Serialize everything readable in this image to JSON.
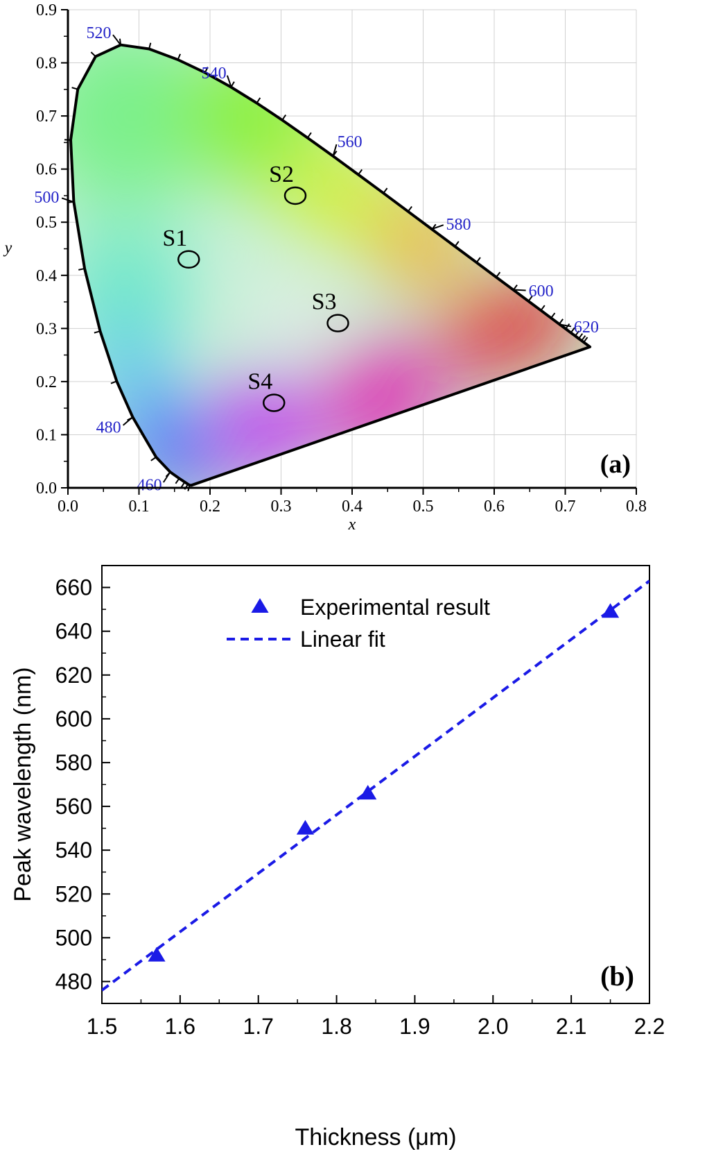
{
  "colors": {
    "axis": "#000000",
    "grid": "#d0d0d0",
    "wavelength_label": "#2323c8",
    "series": "#1a1ae6"
  },
  "chart_data": [
    {
      "type": "scatter",
      "panel_label": "(a)",
      "xlabel": "x",
      "ylabel": "y",
      "xlim": [
        0.0,
        0.8
      ],
      "ylim": [
        0.0,
        0.9
      ],
      "x_ticks": [
        "0.0",
        "0.1",
        "0.2",
        "0.3",
        "0.4",
        "0.5",
        "0.6",
        "0.7",
        "0.8"
      ],
      "y_ticks": [
        "0.0",
        "0.1",
        "0.2",
        "0.3",
        "0.4",
        "0.5",
        "0.6",
        "0.7",
        "0.8",
        "0.9"
      ],
      "grid": true,
      "background": "CIE 1931 chromaticity diagram",
      "wavelength_labels": [
        {
          "nm": "460",
          "x": 0.144,
          "y": 0.03
        },
        {
          "nm": "480",
          "x": 0.091,
          "y": 0.133
        },
        {
          "nm": "500",
          "x": 0.008,
          "y": 0.538
        },
        {
          "nm": "520",
          "x": 0.074,
          "y": 0.834
        },
        {
          "nm": "540",
          "x": 0.23,
          "y": 0.754
        },
        {
          "nm": "560",
          "x": 0.373,
          "y": 0.624
        },
        {
          "nm": "580",
          "x": 0.512,
          "y": 0.487
        },
        {
          "nm": "600",
          "x": 0.627,
          "y": 0.373
        },
        {
          "nm": "620",
          "x": 0.691,
          "y": 0.308
        }
      ],
      "points": [
        {
          "label": "S1",
          "x": 0.17,
          "y": 0.43
        },
        {
          "label": "S2",
          "x": 0.32,
          "y": 0.55
        },
        {
          "label": "S3",
          "x": 0.38,
          "y": 0.31
        },
        {
          "label": "S4",
          "x": 0.29,
          "y": 0.16
        }
      ]
    },
    {
      "type": "scatter",
      "panel_label": "(b)",
      "xlabel": "Thickness (μm)",
      "ylabel": "Peak wavelength (nm)",
      "xlim": [
        1.5,
        2.2
      ],
      "ylim": [
        470,
        670
      ],
      "x_ticks": [
        "1.5",
        "1.6",
        "1.7",
        "1.8",
        "1.9",
        "2.0",
        "2.1",
        "2.2"
      ],
      "y_ticks": [
        "480",
        "500",
        "520",
        "540",
        "560",
        "580",
        "600",
        "620",
        "640",
        "660"
      ],
      "legend_position": "top-center",
      "series": [
        {
          "name": "Experimental result",
          "marker": "triangle",
          "x": [
            1.57,
            1.76,
            1.84,
            2.15
          ],
          "y": [
            492,
            550,
            566,
            649
          ]
        },
        {
          "name": "Linear fit",
          "line": "dashed",
          "x": [
            1.5,
            2.2
          ],
          "y": [
            476,
            663
          ]
        }
      ]
    }
  ]
}
